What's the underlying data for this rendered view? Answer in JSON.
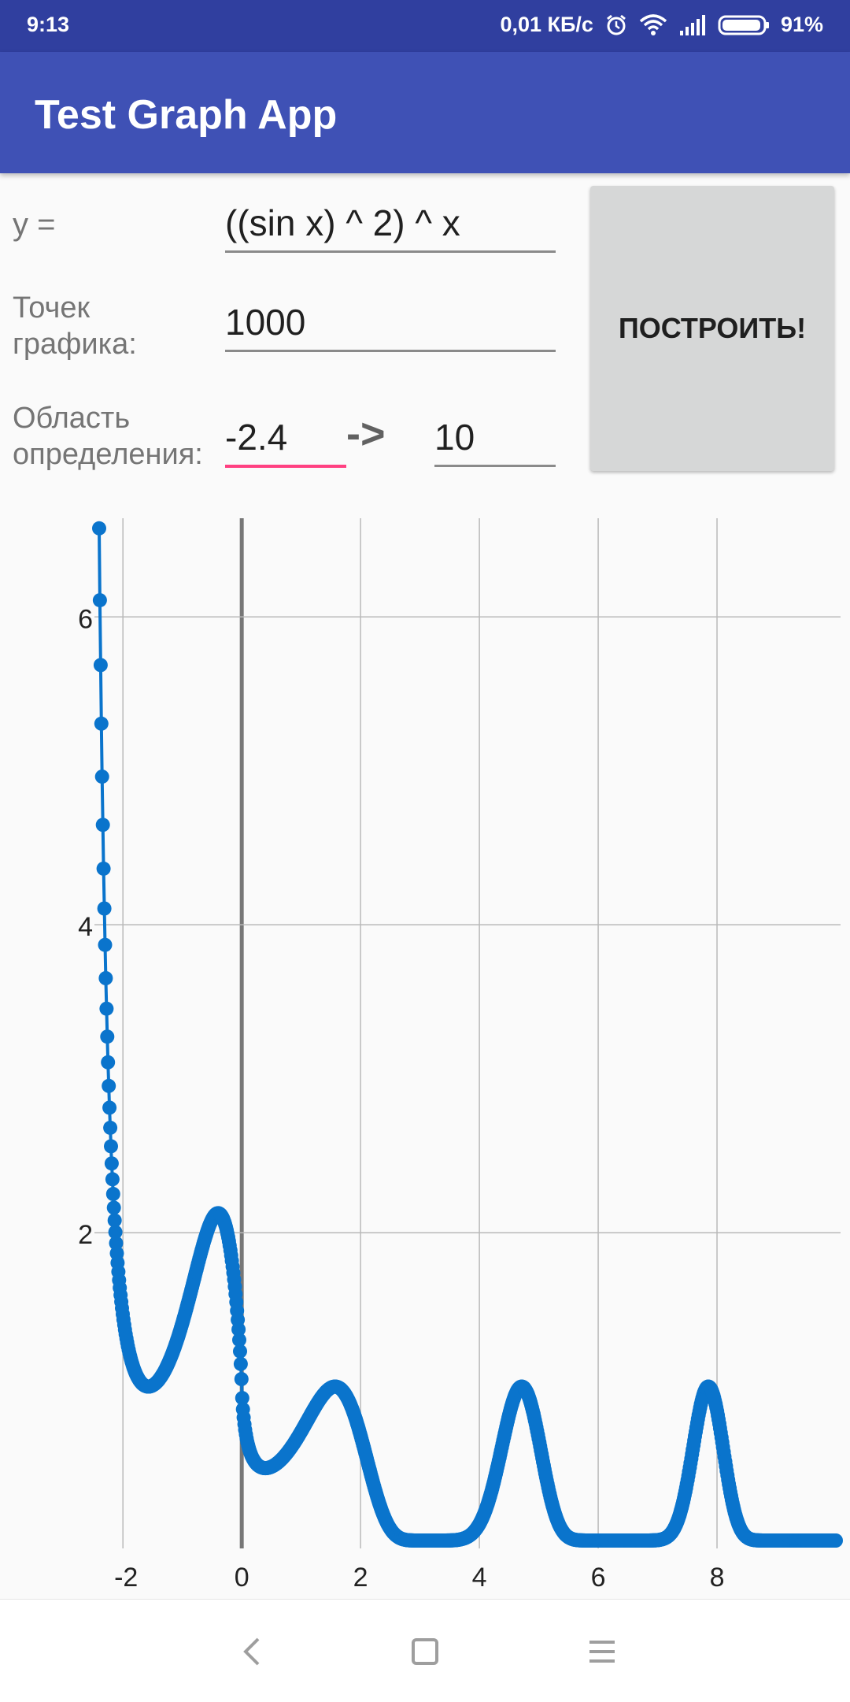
{
  "status_bar": {
    "time": "9:13",
    "net_speed": "0,01 КБ/с",
    "battery": "91%",
    "icons": [
      "alarm-icon",
      "wifi-icon",
      "signal-icon",
      "battery-icon"
    ]
  },
  "app_bar": {
    "title": "Test Graph App"
  },
  "form": {
    "formula_label": "y =",
    "formula_value": "((sin x) ^ 2) ^ x",
    "points_label": "Точек графика:",
    "points_value": "1000",
    "domain_label": "Область определения:",
    "domain_from": "-2.4",
    "domain_arrow": "->",
    "domain_to": "10",
    "build_button": "ПОСТРОИТЬ!"
  },
  "colors": {
    "status_bar": "#303f9f",
    "app_bar": "#3f51b5",
    "accent": "#ff4081",
    "curve": "#0a74cc"
  },
  "chart_data": {
    "type": "scatter",
    "function": "((sin x) ^ 2) ^ x",
    "x_range": [
      -2.4,
      10
    ],
    "points": 1000,
    "x_ticks": [
      -2,
      0,
      2,
      4,
      6,
      8
    ],
    "y_ticks": [
      2,
      4,
      6
    ],
    "xlim": [
      -2.4,
      10
    ],
    "ylim": [
      0,
      6.6
    ],
    "grid": true
  },
  "nav_bar": {
    "buttons": [
      "back-icon",
      "home-icon",
      "menu-icon"
    ]
  }
}
